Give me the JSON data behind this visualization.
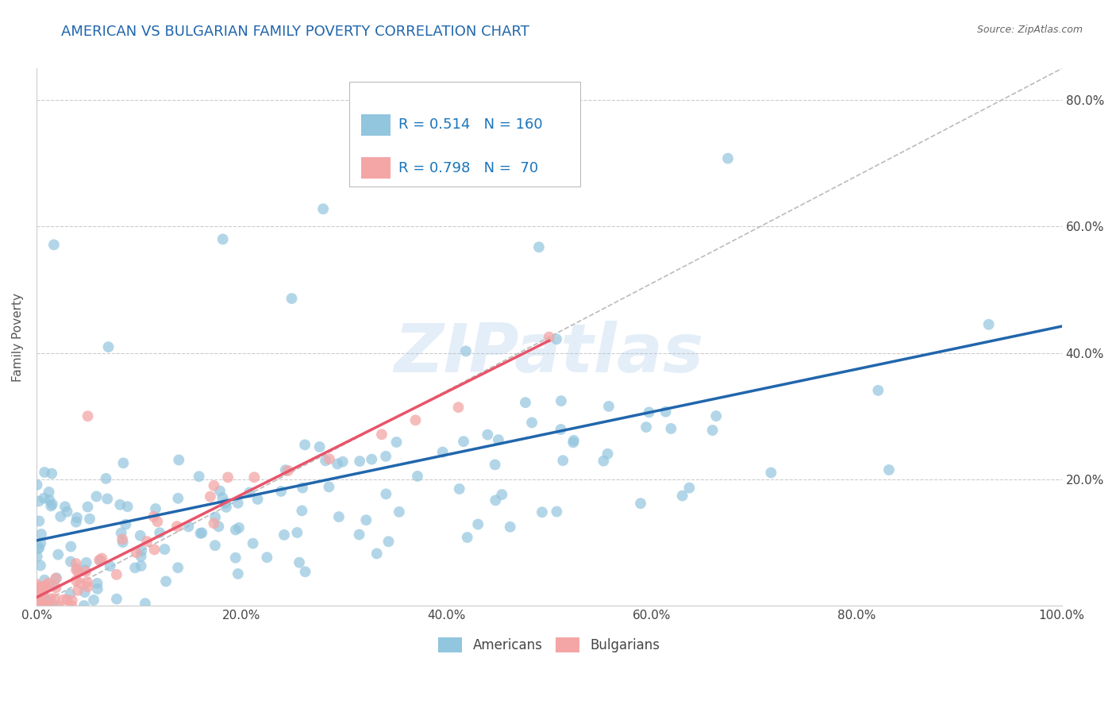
{
  "title": "AMERICAN VS BULGARIAN FAMILY POVERTY CORRELATION CHART",
  "source_text": "Source: ZipAtlas.com",
  "ylabel": "Family Poverty",
  "watermark": "ZIPatlas",
  "xlim": [
    0.0,
    1.0
  ],
  "ylim": [
    0.0,
    0.85
  ],
  "xticks": [
    0.0,
    0.2,
    0.4,
    0.6,
    0.8,
    1.0
  ],
  "yticks": [
    0.0,
    0.2,
    0.4,
    0.6,
    0.8
  ],
  "ytick_labels": [
    "",
    "20.0%",
    "40.0%",
    "60.0%",
    "80.0%"
  ],
  "xtick_labels": [
    "0.0%",
    "20.0%",
    "40.0%",
    "60.0%",
    "80.0%",
    "100.0%"
  ],
  "american_color": "#92c5de",
  "bulgarian_color": "#f4a6a6",
  "american_line_color": "#2166ac",
  "bulgarian_line_color": "#e8546a",
  "american_R": 0.514,
  "american_N": 160,
  "bulgarian_R": 0.798,
  "bulgarian_N": 70,
  "title_color": "#2166ac",
  "legend_R_color": "#1a75bb",
  "grid_color": "#cccccc",
  "background_color": "#ffffff",
  "title_fontsize": 13,
  "axis_label_fontsize": 11,
  "tick_fontsize": 11,
  "legend_fontsize": 13
}
